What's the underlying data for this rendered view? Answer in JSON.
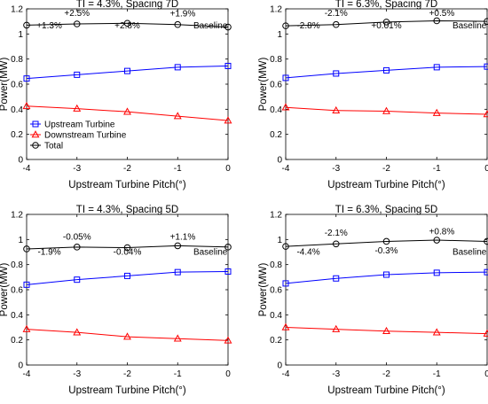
{
  "chart_data": [
    {
      "type": "line",
      "title": "TI = 4.3%, Spacing 7D",
      "xlabel": "Upstream Turbine Pitch(°)",
      "ylabel": "Power(MW)",
      "xlim": [
        -4,
        0
      ],
      "ylim": [
        0,
        1.2
      ],
      "xticks": [
        "-4",
        "-3",
        "-2",
        "-1",
        "0"
      ],
      "yticks": [
        "0",
        "0.2",
        "0.4",
        "0.6",
        "0.8",
        "1",
        "1.2"
      ],
      "x": [
        -4,
        -3,
        -2,
        -1,
        0
      ],
      "legend": {
        "position": "lower-left",
        "show": true
      },
      "series": [
        {
          "name": "Upstream Turbine",
          "color": "#0000ff",
          "marker": "square",
          "values": [
            0.645,
            0.675,
            0.705,
            0.735,
            0.745
          ]
        },
        {
          "name": "Downstream Turbine",
          "color": "#ff0000",
          "marker": "triangle",
          "values": [
            0.425,
            0.405,
            0.38,
            0.345,
            0.31
          ]
        },
        {
          "name": "Total",
          "color": "#000000",
          "marker": "circle",
          "values": [
            1.07,
            1.08,
            1.085,
            1.075,
            1.055
          ]
        }
      ],
      "annotations": [
        {
          "text": "+1.3%",
          "color": "#000000",
          "x": -3.55,
          "y": 1.045
        },
        {
          "text": "+2.5%",
          "color": "#000000",
          "x": -3.0,
          "y": 1.145
        },
        {
          "text": "+2.8%",
          "color": "#ff0000",
          "x": -2.0,
          "y": 1.045
        },
        {
          "text": "+1.9%",
          "color": "#000000",
          "x": -0.9,
          "y": 1.14
        },
        {
          "text": "Baseline",
          "color": "#000000",
          "x": -0.35,
          "y": 1.045
        }
      ]
    },
    {
      "type": "line",
      "title": "TI = 6.3%, Spacing 7D",
      "xlabel": "Upstream Turbine Pitch(°)",
      "ylabel": "Power(MW)",
      "xlim": [
        -4,
        0
      ],
      "ylim": [
        0,
        1.2
      ],
      "xticks": [
        "-4",
        "-3",
        "-2",
        "-1",
        "0"
      ],
      "yticks": [
        "0",
        "0.2",
        "0.4",
        "0.6",
        "0.8",
        "1",
        "1.2"
      ],
      "x": [
        -4,
        -3,
        -2,
        -1,
        0
      ],
      "legend": {
        "show": false
      },
      "series": [
        {
          "name": "Upstream Turbine",
          "color": "#0000ff",
          "marker": "square",
          "values": [
            0.65,
            0.685,
            0.71,
            0.735,
            0.74
          ]
        },
        {
          "name": "Downstream Turbine",
          "color": "#ff0000",
          "marker": "triangle",
          "values": [
            0.415,
            0.39,
            0.385,
            0.37,
            0.36
          ]
        },
        {
          "name": "Total",
          "color": "#000000",
          "marker": "circle",
          "values": [
            1.065,
            1.075,
            1.095,
            1.105,
            1.1
          ]
        }
      ],
      "annotations": [
        {
          "text": "-2.8%",
          "color": "#000000",
          "x": -3.55,
          "y": 1.045
        },
        {
          "text": "-2.1%",
          "color": "#000000",
          "x": -3.0,
          "y": 1.145
        },
        {
          "text": "+0.01%",
          "color": "#000000",
          "x": -2.0,
          "y": 1.045
        },
        {
          "text": "+0.5%",
          "color": "#ff0000",
          "x": -0.9,
          "y": 1.145
        },
        {
          "text": "Baseline",
          "color": "#000000",
          "x": -0.35,
          "y": 1.045
        }
      ]
    },
    {
      "type": "line",
      "title": "TI = 4.3%, Spacing 5D",
      "xlabel": "Upstream Turbine Pitch(°)",
      "ylabel": "Power(MW)",
      "xlim": [
        -4,
        0
      ],
      "ylim": [
        0,
        1.2
      ],
      "xticks": [
        "-4",
        "-3",
        "-2",
        "-1",
        "0"
      ],
      "yticks": [
        "0",
        "0.2",
        "0.4",
        "0.6",
        "0.8",
        "1",
        "1.2"
      ],
      "x": [
        -4,
        -3,
        -2,
        -1,
        0
      ],
      "legend": {
        "show": false
      },
      "series": [
        {
          "name": "Upstream Turbine",
          "color": "#0000ff",
          "marker": "square",
          "values": [
            0.64,
            0.68,
            0.71,
            0.74,
            0.745
          ]
        },
        {
          "name": "Downstream Turbine",
          "color": "#ff0000",
          "marker": "triangle",
          "values": [
            0.285,
            0.26,
            0.225,
            0.21,
            0.195
          ]
        },
        {
          "name": "Total",
          "color": "#000000",
          "marker": "circle",
          "values": [
            0.925,
            0.94,
            0.935,
            0.95,
            0.94
          ]
        }
      ],
      "annotations": [
        {
          "text": "-1.9%",
          "color": "#000000",
          "x": -3.55,
          "y": 0.88
        },
        {
          "text": "-0.05%",
          "color": "#000000",
          "x": -3.0,
          "y": 1.0
        },
        {
          "text": "-0.04%",
          "color": "#000000",
          "x": -2.0,
          "y": 0.88
        },
        {
          "text": "+1.1%",
          "color": "#ff0000",
          "x": -0.9,
          "y": 1.0
        },
        {
          "text": "Baseline",
          "color": "#000000",
          "x": -0.35,
          "y": 0.88
        }
      ]
    },
    {
      "type": "line",
      "title": "TI = 6.3%, Spacing 5D",
      "xlabel": "Upstream Turbine Pitch(°)",
      "ylabel": "Power(MW)",
      "xlim": [
        -4,
        0
      ],
      "ylim": [
        0,
        1.2
      ],
      "xticks": [
        "-4",
        "-3",
        "-2",
        "-1",
        "0"
      ],
      "yticks": [
        "0",
        "0.2",
        "0.4",
        "0.6",
        "0.8",
        "1",
        "1.2"
      ],
      "x": [
        -4,
        -3,
        -2,
        -1,
        0
      ],
      "legend": {
        "show": false
      },
      "series": [
        {
          "name": "Upstream Turbine",
          "color": "#0000ff",
          "marker": "square",
          "values": [
            0.65,
            0.69,
            0.72,
            0.735,
            0.74
          ]
        },
        {
          "name": "Downstream Turbine",
          "color": "#ff0000",
          "marker": "triangle",
          "values": [
            0.3,
            0.285,
            0.27,
            0.26,
            0.25
          ]
        },
        {
          "name": "Total",
          "color": "#000000",
          "marker": "circle",
          "values": [
            0.945,
            0.965,
            0.985,
            0.995,
            0.985
          ]
        }
      ],
      "annotations": [
        {
          "text": "-4.4%",
          "color": "#000000",
          "x": -3.55,
          "y": 0.88
        },
        {
          "text": "-2.1%",
          "color": "#000000",
          "x": -3.0,
          "y": 1.03
        },
        {
          "text": "-0.3%",
          "color": "#000000",
          "x": -2.0,
          "y": 0.89
        },
        {
          "text": "+0.8%",
          "color": "#ff0000",
          "x": -0.9,
          "y": 1.04
        },
        {
          "text": "Baseline",
          "color": "#000000",
          "x": -0.35,
          "y": 0.88
        }
      ]
    }
  ]
}
